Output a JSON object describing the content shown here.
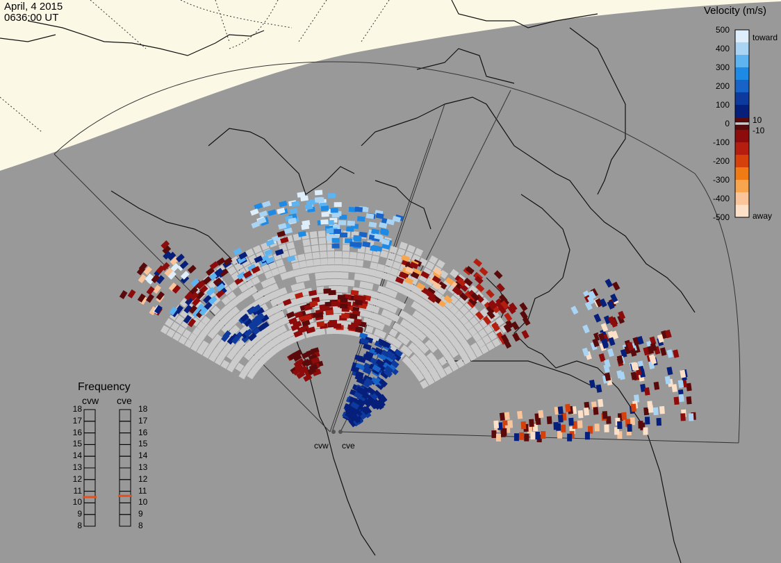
{
  "title": {
    "date": "April, 4 2015",
    "time": "0636:00 UT"
  },
  "velocity_scale": {
    "title": "Velocity (m/s)",
    "ticks": [
      "500",
      "400",
      "300",
      "200",
      "100",
      "0",
      "-100",
      "-200",
      "-300",
      "-400",
      "-500"
    ],
    "side_labels": {
      "toward": "toward",
      "plus10": "10",
      "minus10": "-10",
      "away": "away"
    },
    "colors": [
      "#deeefa",
      "#aad4f4",
      "#5db4f0",
      "#1d8ae6",
      "#1763c8",
      "#0d3a9c",
      "#061f7a",
      "#5a0a0a",
      "#8e0b0b",
      "#b51e0f",
      "#d5400b",
      "#f07a14",
      "#f7a54f",
      "#fac59a",
      "#fde0c8"
    ]
  },
  "frequency": {
    "title": "Frequency",
    "radars": [
      "cvw",
      "cve"
    ],
    "levels": [
      "18",
      "17",
      "16",
      "15",
      "14",
      "13",
      "12",
      "11",
      "10",
      "9",
      "8"
    ],
    "cvw_value": 10.5,
    "cve_value": 10.6,
    "marker_color": "#e8501a"
  },
  "sites": [
    "cvw",
    "cve"
  ],
  "map_colors": {
    "daylight": "#fbf8e6",
    "night": "#999999",
    "ground_scatter": "#cccccc",
    "coast": "#111111"
  }
}
